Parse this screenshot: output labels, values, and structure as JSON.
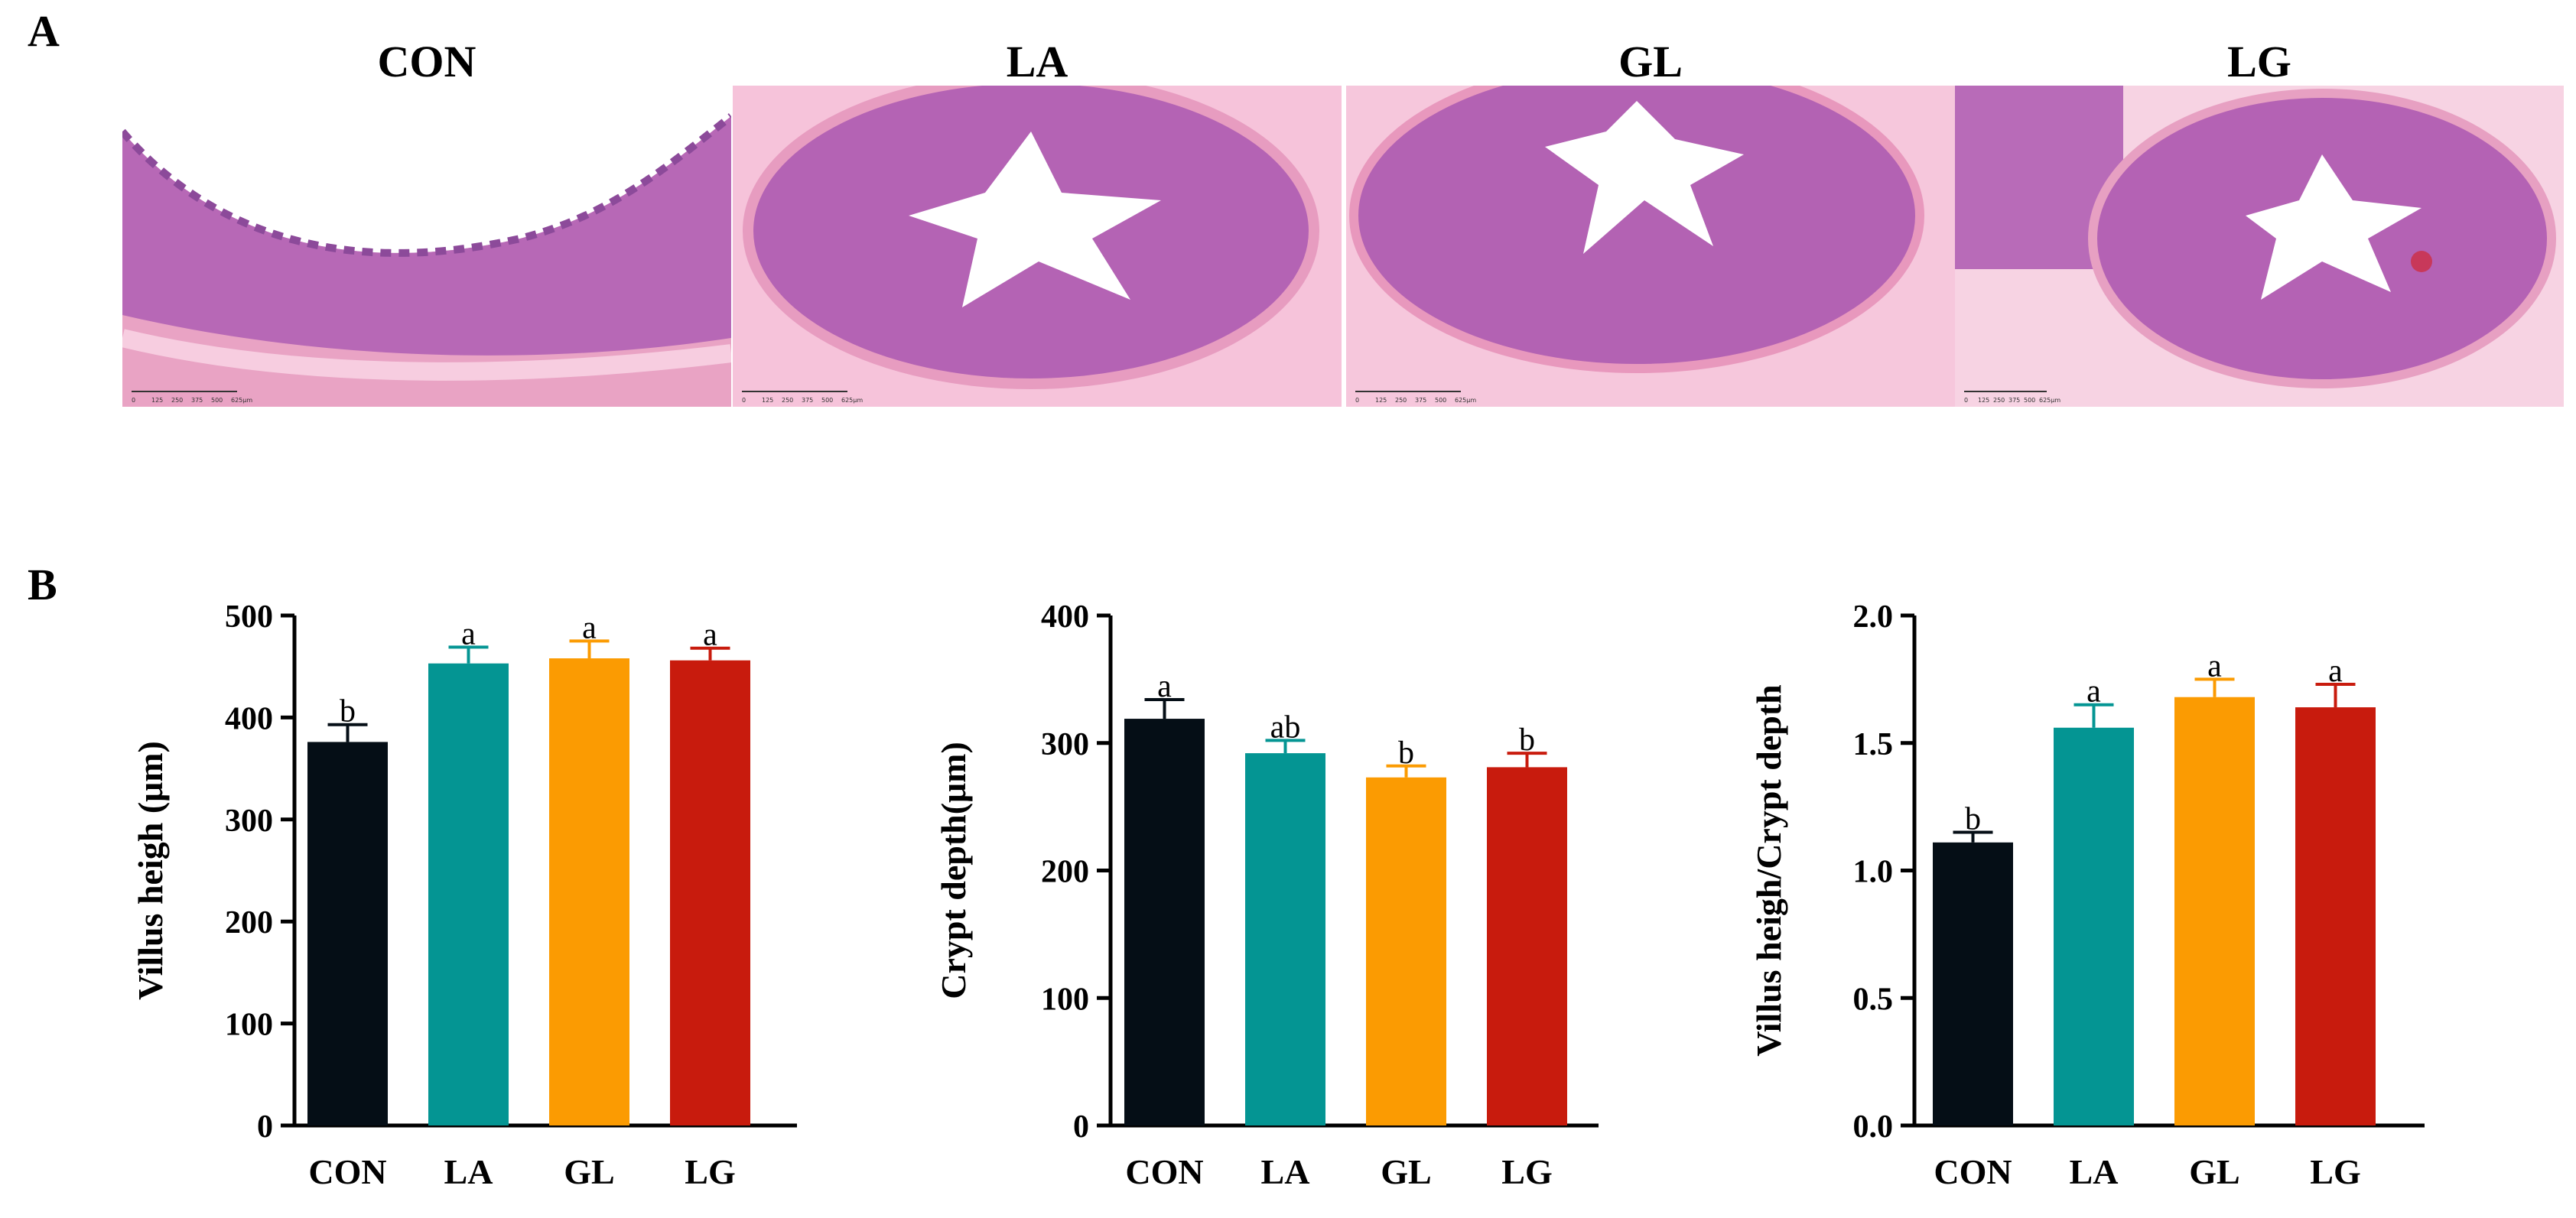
{
  "panels": {
    "a_label": "A",
    "b_label": "B"
  },
  "micrographs": [
    {
      "title": "CON",
      "scalebar_ticks": [
        "0",
        "125",
        "250",
        "375",
        "500",
        "625μm"
      ]
    },
    {
      "title": "LA",
      "scalebar_ticks": [
        "0",
        "125",
        "250",
        "375",
        "500",
        "625μm"
      ]
    },
    {
      "title": "GL",
      "scalebar_ticks": [
        "0",
        "125",
        "250",
        "375",
        "500",
        "625μm"
      ]
    },
    {
      "title": "LG",
      "scalebar_ticks": [
        "0",
        "125",
        "250",
        "375",
        "500",
        "625μm"
      ]
    }
  ],
  "colors": {
    "CON": "#050e16",
    "LA": "#049593",
    "GL": "#fb9b02",
    "LG": "#c81b0d",
    "tissue_dark": "#b25fb3",
    "tissue_light": "#f3b6d3",
    "tissue_pink": "#ea9cbf"
  },
  "chart_data": [
    {
      "type": "bar",
      "categories": [
        "CON",
        "LA",
        "GL",
        "LG"
      ],
      "values": [
        376,
        453,
        458,
        456
      ],
      "errors": [
        17,
        16,
        17,
        12
      ],
      "significance": [
        "b",
        "a",
        "a",
        "a"
      ],
      "ylabel": "Villus heigh (μm)",
      "ylim": [
        0,
        500
      ],
      "yticks": [
        0,
        100,
        200,
        300,
        400,
        500
      ],
      "ytick_labels": [
        "0",
        "100",
        "200",
        "300",
        "400",
        "500"
      ]
    },
    {
      "type": "bar",
      "categories": [
        "CON",
        "LA",
        "GL",
        "LG"
      ],
      "values": [
        319,
        292,
        273,
        281
      ],
      "errors": [
        15,
        10,
        9,
        11
      ],
      "significance": [
        "a",
        "ab",
        "b",
        "b"
      ],
      "ylabel": "Crypt depth(μm)",
      "ylim": [
        0,
        400
      ],
      "yticks": [
        0,
        100,
        200,
        300,
        400
      ],
      "ytick_labels": [
        "0",
        "100",
        "200",
        "300",
        "400"
      ]
    },
    {
      "type": "bar",
      "categories": [
        "CON",
        "LA",
        "GL",
        "LG"
      ],
      "values": [
        1.11,
        1.56,
        1.68,
        1.64
      ],
      "errors": [
        0.04,
        0.09,
        0.07,
        0.09
      ],
      "significance": [
        "b",
        "a",
        "a",
        "a"
      ],
      "ylabel": "Villus heigh/Crypt depth",
      "ylim": [
        0,
        2.0
      ],
      "yticks": [
        0,
        0.5,
        1.0,
        1.5,
        2.0
      ],
      "ytick_labels": [
        "0.0",
        "0.5",
        "1.0",
        "1.5",
        "2.0"
      ]
    }
  ]
}
